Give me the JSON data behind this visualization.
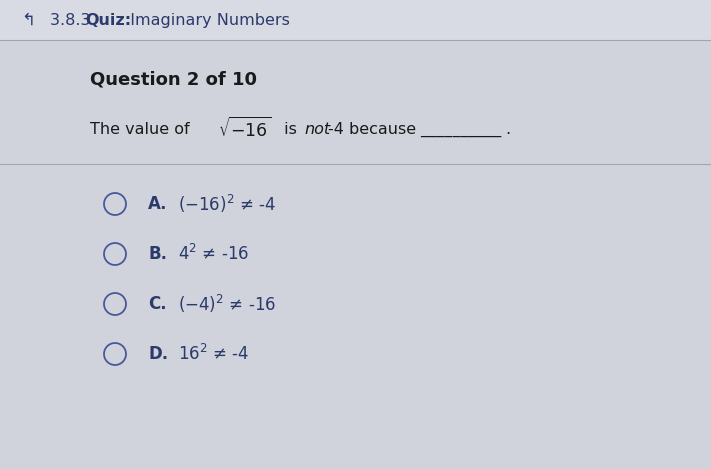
{
  "bg_color": "#cdd0d9",
  "header_bg": "#d8dbe3",
  "header_arrow": "↰",
  "header_label_normal": "3.8.3  ",
  "header_label_bold": "Quiz:",
  "header_label_rest": "  Imaginary Numbers",
  "header_fontsize": 11.5,
  "header_text_color": "#2b3a6b",
  "question_label": "Question 2 of 10",
  "question_label_fontsize": 13,
  "question_fontsize": 11.5,
  "text_color": "#1a1a1a",
  "option_color": "#2b3a6b",
  "separator_color": "#a0a5b0",
  "options": [
    {
      "label": "A.",
      "math": "(-16)^2",
      "rest": " ≠ -4"
    },
    {
      "label": "B.",
      "math": "4^2",
      "rest": " ≠ -16"
    },
    {
      "label": "C.",
      "math": "(-4)^2",
      "rest": " ≠ -16"
    },
    {
      "label": "D.",
      "math": "16^2",
      "rest": " ≠ -4"
    }
  ],
  "option_fontsize": 12,
  "circle_color": "#4a5899"
}
